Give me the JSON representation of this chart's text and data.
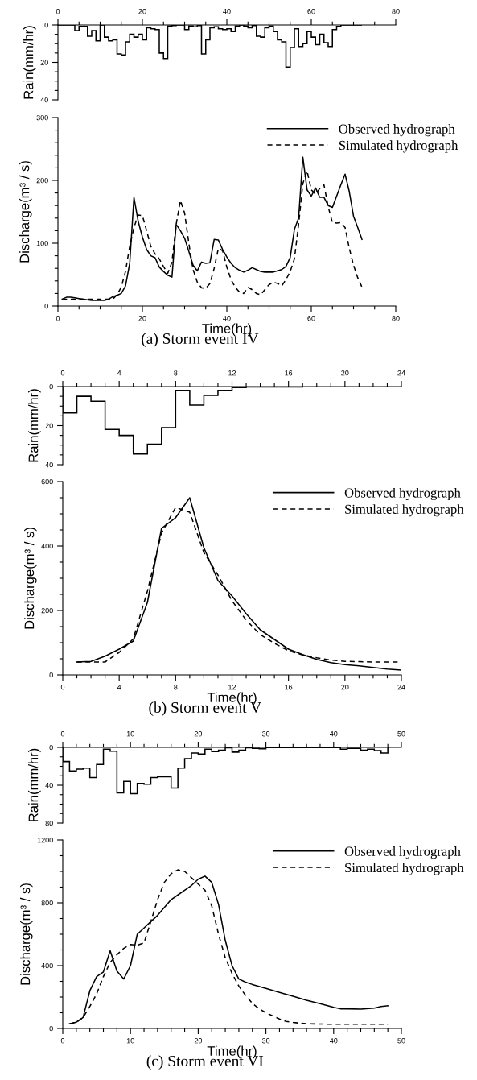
{
  "chart_data": [
    {
      "type": "histogram",
      "ylabel": "Rain(mm/hr)",
      "xlim": [
        0,
        80
      ],
      "xticks": [
        0,
        20,
        40,
        60,
        80
      ],
      "ylim": [
        40,
        0
      ],
      "yticks": [
        0,
        20,
        40
      ],
      "color": "#000000",
      "bins": [
        0,
        1,
        2,
        3,
        4,
        5,
        6,
        7,
        8,
        9,
        10,
        11,
        12,
        13,
        14,
        15,
        16,
        17,
        18,
        19,
        20,
        21,
        22,
        23,
        24,
        25,
        26,
        27,
        28,
        29,
        30,
        31,
        32,
        33,
        34,
        35,
        36,
        37,
        38,
        39,
        40,
        41,
        42,
        43,
        44,
        45,
        46,
        47,
        48,
        49,
        50,
        51,
        52,
        53,
        54,
        55,
        56,
        57,
        58,
        59,
        60,
        61,
        62,
        63,
        64,
        65,
        66,
        67,
        68,
        69,
        70,
        71,
        72
      ],
      "values": [
        0,
        0,
        0,
        0,
        3,
        0.8,
        0.8,
        6,
        3,
        8.5,
        0,
        6.5,
        8.5,
        8,
        15.5,
        16,
        9,
        5,
        6.5,
        5,
        8,
        1.5,
        2,
        2.5,
        15,
        18,
        0.5,
        0.3,
        0,
        0,
        2.5,
        0.5,
        1,
        0.3,
        15.5,
        8,
        1.5,
        1,
        2,
        2.5,
        2,
        3.5,
        0.5,
        0,
        0.5,
        1.5,
        0.3,
        6,
        6.5,
        1.5,
        0.5,
        3.5,
        8,
        9,
        22.5,
        12,
        2,
        11.5,
        10,
        3.5,
        6.5,
        10.5,
        5,
        9.5,
        11.5,
        2.5,
        0.8,
        0,
        0,
        0,
        0,
        0
      ]
    },
    {
      "type": "line",
      "xlabel": "Time(hr)",
      "ylabel": "Discharge(m³ / s)",
      "xlim": [
        0,
        80
      ],
      "xticks": [
        0,
        20,
        40,
        60,
        80
      ],
      "ylim": [
        0,
        300
      ],
      "yticks": [
        0,
        100,
        200,
        300
      ],
      "legend": "top right",
      "annotations": [
        "(a) Storm event IV"
      ],
      "x": [
        1,
        2,
        3,
        4,
        5,
        6,
        7,
        8,
        9,
        10,
        11,
        12,
        13,
        14,
        15,
        16,
        17,
        18,
        19,
        20,
        21,
        22,
        23,
        24,
        25,
        26,
        27,
        28,
        29,
        30,
        31,
        32,
        33,
        34,
        35,
        36,
        37,
        38,
        39,
        40,
        41,
        42,
        43,
        44,
        45,
        46,
        47,
        48,
        49,
        50,
        51,
        52,
        53,
        54,
        55,
        56,
        57,
        58,
        59,
        60,
        61,
        62,
        63,
        64,
        65,
        66,
        67,
        68,
        69,
        70,
        71,
        72
      ],
      "series": [
        {
          "name": "Observed hydrograph",
          "color": "#000000",
          "line_style": "solid",
          "values": [
            11,
            14,
            14,
            13,
            12,
            11,
            10,
            9,
            9,
            9,
            9,
            11,
            15,
            17,
            20,
            32,
            68,
            173,
            135,
            110,
            90,
            80,
            77,
            62,
            55,
            49,
            46,
            130,
            120,
            108,
            87,
            65,
            56,
            70,
            68,
            69,
            106,
            105,
            90,
            78,
            68,
            61,
            57,
            54,
            57,
            61,
            58,
            55,
            54,
            54,
            54,
            56,
            58,
            63,
            77,
            122,
            140,
            237,
            185,
            175,
            188,
            173,
            173,
            160,
            157,
            175,
            193,
            210,
            182,
            143,
            125,
            106
          ]
        },
        {
          "name": "Simulated hydrograph",
          "color": "#000000",
          "line_style": "dashed",
          "values": [
            10,
            11,
            11,
            11,
            11,
            11,
            11,
            11,
            11,
            11,
            11,
            11,
            11,
            18,
            30,
            55,
            95,
            125,
            145,
            144,
            120,
            95,
            83,
            75,
            63,
            52,
            70,
            130,
            168,
            148,
            100,
            58,
            38,
            29,
            28,
            36,
            60,
            92,
            88,
            62,
            42,
            30,
            22,
            20,
            30,
            26,
            20,
            18,
            26,
            34,
            38,
            36,
            32,
            42,
            55,
            75,
            130,
            195,
            215,
            185,
            178,
            187,
            193,
            158,
            133,
            132,
            133,
            125,
            92,
            65,
            45,
            30
          ]
        }
      ]
    },
    {
      "type": "histogram",
      "ylabel": "Rain(mm/hr)",
      "xlim": [
        0,
        24
      ],
      "xticks": [
        0,
        4,
        8,
        12,
        16,
        20,
        24
      ],
      "ylim": [
        40,
        0
      ],
      "yticks": [
        0,
        20,
        40
      ],
      "color": "#000000",
      "bins": [
        0,
        1,
        2,
        3,
        4,
        5,
        6,
        7,
        8,
        9,
        10,
        11,
        12,
        13,
        14,
        15,
        16,
        17,
        18,
        19,
        20,
        21,
        22,
        23,
        24
      ],
      "values": [
        13.5,
        5,
        7.5,
        22,
        25,
        34.5,
        29.5,
        21,
        2,
        9.5,
        4.5,
        2,
        0.5,
        0.2,
        0.2,
        0.2,
        0.2,
        0,
        0,
        0,
        0,
        0,
        0,
        0
      ]
    },
    {
      "type": "line",
      "xlabel": "Time(hr)",
      "ylabel": "Discharge(m³ / s)",
      "xlim": [
        0,
        24
      ],
      "xticks": [
        0,
        4,
        8,
        12,
        16,
        20,
        24
      ],
      "ylim": [
        0,
        600
      ],
      "yticks": [
        0,
        200,
        400,
        600
      ],
      "legend": "top right",
      "annotations": [
        "(b) Storm event V"
      ],
      "x": [
        1,
        2,
        3,
        4,
        5,
        6,
        7,
        8,
        9,
        10,
        11,
        12,
        13,
        14,
        15,
        16,
        17,
        18,
        19,
        20,
        21,
        22,
        23,
        24
      ],
      "series": [
        {
          "name": "Observed hydrograph",
          "color": "#000000",
          "line_style": "solid",
          "values": [
            40,
            42,
            58,
            80,
            105,
            225,
            455,
            488,
            550,
            395,
            293,
            245,
            190,
            140,
            110,
            80,
            63,
            48,
            38,
            32,
            28,
            23,
            18,
            15
          ]
        },
        {
          "name": "Simulated hydrograph",
          "color": "#000000",
          "line_style": "dashed",
          "values": [
            40,
            40,
            40,
            70,
            112,
            260,
            440,
            520,
            505,
            380,
            310,
            230,
            170,
            125,
            98,
            75,
            62,
            53,
            46,
            42,
            41,
            40,
            40,
            40
          ]
        }
      ]
    },
    {
      "type": "histogram",
      "ylabel": "Rain(mm/hr)",
      "xlim": [
        0,
        50
      ],
      "xticks": [
        0,
        10,
        20,
        30,
        40,
        50
      ],
      "ylim": [
        80,
        0
      ],
      "yticks": [
        0,
        40,
        80
      ],
      "color": "#000000",
      "bins": [
        0,
        1,
        2,
        3,
        4,
        5,
        6,
        7,
        8,
        9,
        10,
        11,
        12,
        13,
        14,
        15,
        16,
        17,
        18,
        19,
        20,
        21,
        22,
        23,
        24,
        25,
        26,
        27,
        28,
        29,
        30,
        31,
        32,
        33,
        34,
        35,
        36,
        37,
        38,
        39,
        40,
        41,
        42,
        43,
        44,
        45,
        46,
        47,
        48
      ],
      "values": [
        15,
        25,
        23,
        22,
        32,
        18,
        2,
        4,
        48,
        36,
        49,
        38,
        39,
        32,
        31,
        31,
        43,
        22,
        12,
        6,
        7,
        2,
        4.5,
        3,
        0.5,
        5,
        3,
        0.5,
        1,
        1.5,
        0.3,
        0.3,
        0.3,
        0.3,
        0.3,
        0.3,
        0.3,
        0.3,
        0.3,
        0.3,
        0.3,
        2,
        1,
        1,
        3,
        2,
        3.5,
        6
      ]
    },
    {
      "type": "line",
      "xlabel": "Time(hr)",
      "ylabel": "Discharge(m³ / s)",
      "xlim": [
        0,
        50
      ],
      "xticks": [
        0,
        10,
        20,
        30,
        40,
        50
      ],
      "ylim": [
        0,
        1200
      ],
      "yticks": [
        0,
        400,
        800,
        1200
      ],
      "legend": "top right",
      "annotations": [
        "(c) Storm event VI"
      ],
      "series": [
        {
          "name": "Observed hydrograph",
          "color": "#000000",
          "line_style": "solid",
          "x": [
            1,
            2,
            3,
            4,
            5,
            6,
            7,
            8,
            9,
            10,
            11,
            12,
            13,
            14,
            15,
            16,
            17,
            18,
            19,
            20,
            21,
            22,
            23,
            24,
            25,
            26,
            27,
            28,
            30,
            32,
            34,
            36,
            38,
            40,
            41,
            42,
            44,
            46,
            47,
            48
          ],
          "values": [
            30,
            40,
            70,
            240,
            330,
            360,
            495,
            365,
            315,
            400,
            600,
            640,
            680,
            720,
            770,
            820,
            850,
            880,
            910,
            950,
            970,
            930,
            790,
            560,
            400,
            315,
            295,
            280,
            255,
            230,
            205,
            180,
            158,
            135,
            125,
            125,
            123,
            130,
            140,
            145
          ]
        },
        {
          "name": "Simulated hydrograph",
          "color": "#000000",
          "line_style": "dashed",
          "x": [
            1,
            2,
            3,
            4,
            5,
            6,
            7,
            8,
            9,
            10,
            11,
            12,
            13,
            14,
            15,
            16,
            17,
            18,
            19,
            20,
            21,
            22,
            23,
            24,
            25,
            26,
            27,
            28,
            29,
            30,
            31,
            32,
            33,
            34,
            36,
            38,
            40,
            44,
            48
          ],
          "values": [
            30,
            40,
            70,
            140,
            220,
            330,
            420,
            470,
            510,
            535,
            530,
            545,
            680,
            820,
            930,
            985,
            1010,
            1000,
            960,
            920,
            880,
            780,
            600,
            450,
            350,
            270,
            210,
            160,
            125,
            100,
            80,
            60,
            45,
            38,
            30,
            28,
            27,
            27,
            27
          ]
        }
      ]
    }
  ]
}
